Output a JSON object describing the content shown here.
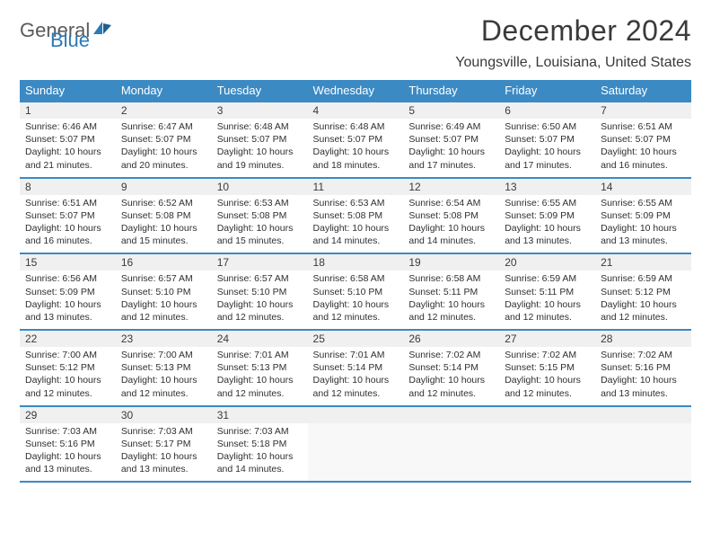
{
  "brand": {
    "line1": "General",
    "line2": "Blue"
  },
  "title": "December 2024",
  "location": "Youngsville, Louisiana, United States",
  "colors": {
    "header_bg": "#3b8ac4",
    "header_text": "#ffffff",
    "daynum_bg": "#f0f0f0",
    "border": "#3b8ac4",
    "logo_gray": "#5a5a5a",
    "logo_blue": "#2a7ab8",
    "body_text": "#3a3a3a",
    "page_bg": "#ffffff"
  },
  "typography": {
    "title_fontsize": 32,
    "location_fontsize": 16,
    "header_fontsize": 13,
    "daynum_fontsize": 12,
    "cell_fontsize": 10.5
  },
  "layout": {
    "columns": 7,
    "rows": 5
  },
  "daynames": [
    "Sunday",
    "Monday",
    "Tuesday",
    "Wednesday",
    "Thursday",
    "Friday",
    "Saturday"
  ],
  "weeks": [
    [
      {
        "n": "1",
        "sr": "6:46 AM",
        "ss": "5:07 PM",
        "dl": "10 hours and 21 minutes."
      },
      {
        "n": "2",
        "sr": "6:47 AM",
        "ss": "5:07 PM",
        "dl": "10 hours and 20 minutes."
      },
      {
        "n": "3",
        "sr": "6:48 AM",
        "ss": "5:07 PM",
        "dl": "10 hours and 19 minutes."
      },
      {
        "n": "4",
        "sr": "6:48 AM",
        "ss": "5:07 PM",
        "dl": "10 hours and 18 minutes."
      },
      {
        "n": "5",
        "sr": "6:49 AM",
        "ss": "5:07 PM",
        "dl": "10 hours and 17 minutes."
      },
      {
        "n": "6",
        "sr": "6:50 AM",
        "ss": "5:07 PM",
        "dl": "10 hours and 17 minutes."
      },
      {
        "n": "7",
        "sr": "6:51 AM",
        "ss": "5:07 PM",
        "dl": "10 hours and 16 minutes."
      }
    ],
    [
      {
        "n": "8",
        "sr": "6:51 AM",
        "ss": "5:07 PM",
        "dl": "10 hours and 16 minutes."
      },
      {
        "n": "9",
        "sr": "6:52 AM",
        "ss": "5:08 PM",
        "dl": "10 hours and 15 minutes."
      },
      {
        "n": "10",
        "sr": "6:53 AM",
        "ss": "5:08 PM",
        "dl": "10 hours and 15 minutes."
      },
      {
        "n": "11",
        "sr": "6:53 AM",
        "ss": "5:08 PM",
        "dl": "10 hours and 14 minutes."
      },
      {
        "n": "12",
        "sr": "6:54 AM",
        "ss": "5:08 PM",
        "dl": "10 hours and 14 minutes."
      },
      {
        "n": "13",
        "sr": "6:55 AM",
        "ss": "5:09 PM",
        "dl": "10 hours and 13 minutes."
      },
      {
        "n": "14",
        "sr": "6:55 AM",
        "ss": "5:09 PM",
        "dl": "10 hours and 13 minutes."
      }
    ],
    [
      {
        "n": "15",
        "sr": "6:56 AM",
        "ss": "5:09 PM",
        "dl": "10 hours and 13 minutes."
      },
      {
        "n": "16",
        "sr": "6:57 AM",
        "ss": "5:10 PM",
        "dl": "10 hours and 12 minutes."
      },
      {
        "n": "17",
        "sr": "6:57 AM",
        "ss": "5:10 PM",
        "dl": "10 hours and 12 minutes."
      },
      {
        "n": "18",
        "sr": "6:58 AM",
        "ss": "5:10 PM",
        "dl": "10 hours and 12 minutes."
      },
      {
        "n": "19",
        "sr": "6:58 AM",
        "ss": "5:11 PM",
        "dl": "10 hours and 12 minutes."
      },
      {
        "n": "20",
        "sr": "6:59 AM",
        "ss": "5:11 PM",
        "dl": "10 hours and 12 minutes."
      },
      {
        "n": "21",
        "sr": "6:59 AM",
        "ss": "5:12 PM",
        "dl": "10 hours and 12 minutes."
      }
    ],
    [
      {
        "n": "22",
        "sr": "7:00 AM",
        "ss": "5:12 PM",
        "dl": "10 hours and 12 minutes."
      },
      {
        "n": "23",
        "sr": "7:00 AM",
        "ss": "5:13 PM",
        "dl": "10 hours and 12 minutes."
      },
      {
        "n": "24",
        "sr": "7:01 AM",
        "ss": "5:13 PM",
        "dl": "10 hours and 12 minutes."
      },
      {
        "n": "25",
        "sr": "7:01 AM",
        "ss": "5:14 PM",
        "dl": "10 hours and 12 minutes."
      },
      {
        "n": "26",
        "sr": "7:02 AM",
        "ss": "5:14 PM",
        "dl": "10 hours and 12 minutes."
      },
      {
        "n": "27",
        "sr": "7:02 AM",
        "ss": "5:15 PM",
        "dl": "10 hours and 12 minutes."
      },
      {
        "n": "28",
        "sr": "7:02 AM",
        "ss": "5:16 PM",
        "dl": "10 hours and 13 minutes."
      }
    ],
    [
      {
        "n": "29",
        "sr": "7:03 AM",
        "ss": "5:16 PM",
        "dl": "10 hours and 13 minutes."
      },
      {
        "n": "30",
        "sr": "7:03 AM",
        "ss": "5:17 PM",
        "dl": "10 hours and 13 minutes."
      },
      {
        "n": "31",
        "sr": "7:03 AM",
        "ss": "5:18 PM",
        "dl": "10 hours and 14 minutes."
      },
      null,
      null,
      null,
      null
    ]
  ],
  "labels": {
    "sunrise": "Sunrise:",
    "sunset": "Sunset:",
    "daylight": "Daylight:"
  }
}
